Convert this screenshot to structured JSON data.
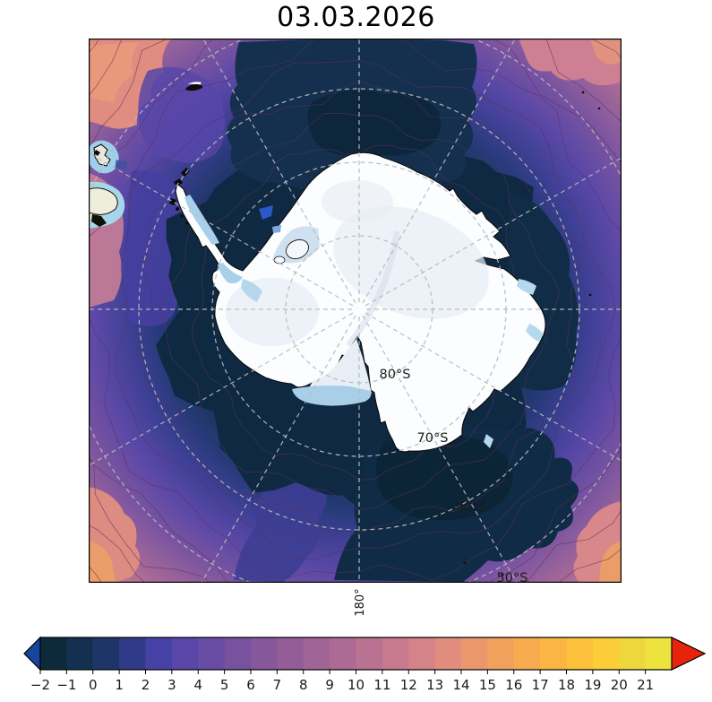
{
  "title": "03.03.2026",
  "map": {
    "latitude_labels": [
      "80°S",
      "70°S",
      "60°S",
      "50°S"
    ],
    "longitude_label": "180°"
  },
  "colorbar": {
    "tick_labels": [
      "−2",
      "−1",
      "0",
      "1",
      "2",
      "3",
      "4",
      "5",
      "6",
      "7",
      "8",
      "9",
      "10",
      "11",
      "12",
      "13",
      "14",
      "15",
      "16",
      "17",
      "18",
      "19",
      "20",
      "21"
    ],
    "segment_colors": [
      "#0d2a3b",
      "#133050",
      "#1d3667",
      "#2f3b88",
      "#4641a5",
      "#5946a9",
      "#694ca4",
      "#78519f",
      "#86579b",
      "#935d98",
      "#a06496",
      "#ad6b94",
      "#ba7292",
      "#c77a8e",
      "#d48389",
      "#e08d7e",
      "#ea976e",
      "#f2a15c",
      "#f8ab4e",
      "#fbb542",
      "#fdc13b",
      "#fccd38",
      "#eed73c",
      "#eee33e"
    ],
    "under_arrow_color": "#17459e",
    "over_arrow_color": "#e8220d",
    "value_range": [
      -2,
      21
    ]
  }
}
